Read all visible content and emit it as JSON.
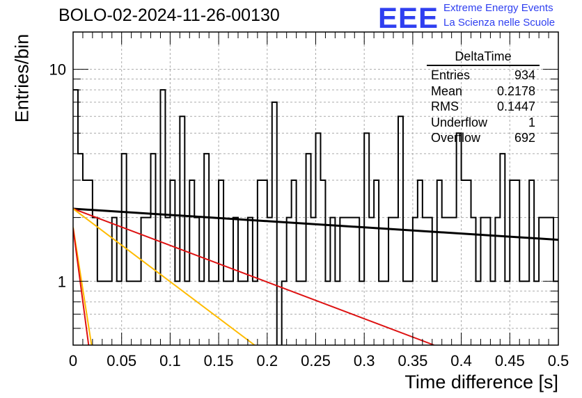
{
  "title": "BOLO-02-2024-11-26-00130",
  "logo": {
    "mark": "EEE",
    "line1": "Extreme Energy Events",
    "line2": "La Scienza nelle Scuole",
    "color": "#2f3ff0"
  },
  "stats_box": {
    "name": "DeltaTime",
    "rows": [
      {
        "label": "Entries",
        "value": "934"
      },
      {
        "label": "Mean",
        "value": "0.2178"
      },
      {
        "label": "RMS",
        "value": "0.1447"
      },
      {
        "label": "Underflow",
        "value": "1"
      },
      {
        "label": "Overflow",
        "value": "692"
      }
    ]
  },
  "chart_data": {
    "type": "line",
    "title": "BOLO-02-2024-11-26-00130",
    "xlabel": "Time difference [s]",
    "ylabel": "Entries/bin",
    "xlim": [
      0,
      0.5
    ],
    "ylim": [
      0.5,
      15
    ],
    "ylog": true,
    "grid": true,
    "x_ticks": [
      "0",
      "0.05",
      "0.1",
      "0.15",
      "0.2",
      "0.25",
      "0.3",
      "0.35",
      "0.4",
      "0.45",
      "0.5"
    ],
    "y_ticks": [
      "1",
      "10"
    ],
    "histogram": {
      "bin_width": 0.005,
      "counts": [
        8,
        4,
        3,
        3,
        2,
        1,
        1,
        1,
        2,
        1,
        4,
        1,
        1,
        1,
        2,
        2,
        4,
        1,
        8,
        2,
        3,
        1,
        6,
        1,
        3,
        2,
        1,
        4,
        1,
        1,
        3,
        1,
        1,
        2,
        1,
        1,
        2,
        1,
        3,
        3,
        2,
        7,
        0,
        1,
        2,
        3,
        1,
        1,
        4,
        2,
        5,
        3,
        1,
        2,
        1,
        2,
        2,
        2,
        2,
        1,
        5,
        2,
        3,
        1,
        1,
        2,
        2,
        6,
        1,
        1,
        2,
        3,
        2,
        2,
        1,
        3,
        2,
        2,
        2,
        5,
        3,
        3,
        2,
        1,
        2,
        2,
        1,
        2,
        4,
        1,
        3,
        3,
        1,
        1,
        3,
        1,
        2,
        2,
        2,
        1
      ]
    },
    "fits": [
      {
        "color": "#000000",
        "values": [
          [
            0.0,
            2.2
          ],
          [
            0.5,
            1.57
          ]
        ]
      },
      {
        "color": "#dd1111",
        "values": [
          [
            0.0,
            2.2
          ],
          [
            0.372,
            0.5
          ]
        ]
      },
      {
        "color": "#ffbb00",
        "values": [
          [
            0.0,
            2.2
          ],
          [
            0.187,
            0.5
          ]
        ]
      },
      {
        "color": "#ffbb00",
        "values": [
          [
            0.0,
            1.8
          ],
          [
            0.019,
            0.5
          ]
        ]
      },
      {
        "color": "#dd1111",
        "values": [
          [
            0.0,
            1.78
          ],
          [
            0.016,
            0.5
          ]
        ]
      }
    ]
  }
}
